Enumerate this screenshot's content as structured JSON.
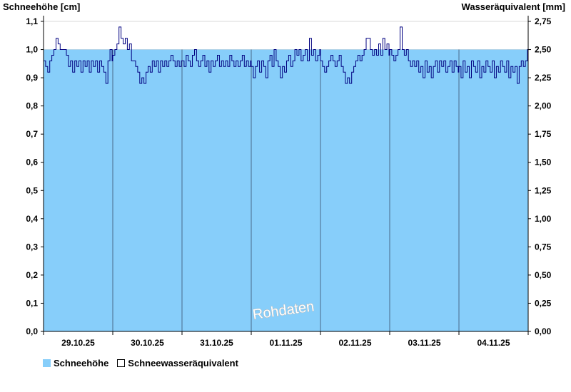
{
  "chart_data": {
    "type": "area",
    "y_left_label": "Schneehöhe [cm]",
    "y_right_label": "Wasseräquivalent [mm]",
    "y_left_range": [
      0.0,
      1.1
    ],
    "y_right_range": [
      0.0,
      2.75
    ],
    "y_left_ticks": [
      "0,0",
      "0,1",
      "0,2",
      "0,3",
      "0,4",
      "0,5",
      "0,6",
      "0,7",
      "0,8",
      "0,9",
      "1,0",
      "1,1"
    ],
    "y_right_ticks": [
      "0,00",
      "0,25",
      "0,50",
      "0,75",
      "1,00",
      "1,25",
      "1,50",
      "1,75",
      "2,00",
      "2,25",
      "2,50",
      "2,75"
    ],
    "x_categories": [
      "29.10.25",
      "30.10.25",
      "31.10.25",
      "01.11.25",
      "02.11.25",
      "03.11.25",
      "04.11.25"
    ],
    "grid_horizontal": true,
    "day_separators": true,
    "watermark": "Rohdaten",
    "series": [
      {
        "name": "Schneehöhe",
        "kind": "area",
        "color": "#87cefa",
        "value_cm": 1.0
      },
      {
        "name": "Schneewasseräquivalent",
        "kind": "line",
        "color": "#000080",
        "axis": "left_cm_scale",
        "points": [
          [
            0.0,
            0.96
          ],
          [
            0.03,
            0.94
          ],
          [
            0.06,
            0.92
          ],
          [
            0.09,
            0.96
          ],
          [
            0.12,
            0.98
          ],
          [
            0.15,
            1.0
          ],
          [
            0.18,
            1.04
          ],
          [
            0.21,
            1.02
          ],
          [
            0.24,
            1.0
          ],
          [
            0.27,
            1.0
          ],
          [
            0.3,
            1.0
          ],
          [
            0.33,
            0.98
          ],
          [
            0.36,
            0.94
          ],
          [
            0.39,
            0.96
          ],
          [
            0.42,
            0.92
          ],
          [
            0.45,
            0.96
          ],
          [
            0.48,
            0.94
          ],
          [
            0.51,
            0.96
          ],
          [
            0.54,
            0.92
          ],
          [
            0.57,
            0.96
          ],
          [
            0.6,
            0.94
          ],
          [
            0.63,
            0.96
          ],
          [
            0.66,
            0.92
          ],
          [
            0.69,
            0.96
          ],
          [
            0.72,
            0.94
          ],
          [
            0.75,
            0.96
          ],
          [
            0.78,
            0.92
          ],
          [
            0.81,
            0.96
          ],
          [
            0.84,
            0.94
          ],
          [
            0.87,
            0.92
          ],
          [
            0.9,
            0.88
          ],
          [
            0.93,
            0.96
          ],
          [
            0.96,
            1.0
          ],
          [
            0.99,
            0.96
          ],
          [
            1.0,
            0.98
          ],
          [
            1.03,
            1.0
          ],
          [
            1.06,
            1.02
          ],
          [
            1.09,
            1.08
          ],
          [
            1.12,
            1.04
          ],
          [
            1.15,
            1.02
          ],
          [
            1.18,
            1.04
          ],
          [
            1.21,
            1.0
          ],
          [
            1.24,
            1.02
          ],
          [
            1.27,
            0.96
          ],
          [
            1.3,
            0.96
          ],
          [
            1.33,
            0.94
          ],
          [
            1.36,
            0.92
          ],
          [
            1.39,
            0.88
          ],
          [
            1.42,
            0.9
          ],
          [
            1.45,
            0.88
          ],
          [
            1.48,
            0.92
          ],
          [
            1.51,
            0.94
          ],
          [
            1.54,
            0.92
          ],
          [
            1.57,
            0.96
          ],
          [
            1.6,
            0.94
          ],
          [
            1.63,
            0.96
          ],
          [
            1.66,
            0.92
          ],
          [
            1.69,
            0.96
          ],
          [
            1.72,
            0.94
          ],
          [
            1.75,
            0.96
          ],
          [
            1.78,
            0.94
          ],
          [
            1.81,
            0.96
          ],
          [
            1.84,
            0.98
          ],
          [
            1.87,
            0.96
          ],
          [
            1.9,
            0.94
          ],
          [
            1.93,
            0.96
          ],
          [
            1.96,
            0.94
          ],
          [
            1.99,
            0.96
          ],
          [
            2.0,
            0.96
          ],
          [
            2.03,
            0.94
          ],
          [
            2.06,
            0.98
          ],
          [
            2.09,
            0.96
          ],
          [
            2.12,
            0.94
          ],
          [
            2.15,
            0.98
          ],
          [
            2.18,
            1.0
          ],
          [
            2.21,
            0.96
          ],
          [
            2.24,
            0.94
          ],
          [
            2.27,
            0.96
          ],
          [
            2.3,
            0.98
          ],
          [
            2.33,
            0.94
          ],
          [
            2.36,
            0.96
          ],
          [
            2.39,
            0.92
          ],
          [
            2.42,
            0.96
          ],
          [
            2.45,
            0.94
          ],
          [
            2.48,
            0.96
          ],
          [
            2.51,
            0.98
          ],
          [
            2.54,
            0.94
          ],
          [
            2.57,
            0.96
          ],
          [
            2.6,
            0.94
          ],
          [
            2.63,
            0.96
          ],
          [
            2.66,
            0.94
          ],
          [
            2.69,
            0.98
          ],
          [
            2.72,
            0.96
          ],
          [
            2.75,
            0.94
          ],
          [
            2.78,
            0.96
          ],
          [
            2.81,
            0.94
          ],
          [
            2.84,
            0.96
          ],
          [
            2.87,
            0.98
          ],
          [
            2.9,
            0.94
          ],
          [
            2.93,
            0.96
          ],
          [
            2.96,
            0.94
          ],
          [
            2.99,
            0.96
          ],
          [
            3.0,
            0.94
          ],
          [
            3.03,
            0.9
          ],
          [
            3.06,
            0.94
          ],
          [
            3.09,
            0.96
          ],
          [
            3.12,
            0.92
          ],
          [
            3.15,
            0.96
          ],
          [
            3.18,
            0.94
          ],
          [
            3.21,
            0.9
          ],
          [
            3.24,
            0.96
          ],
          [
            3.27,
            0.98
          ],
          [
            3.3,
            0.94
          ],
          [
            3.33,
            1.0
          ],
          [
            3.36,
            0.96
          ],
          [
            3.39,
            0.94
          ],
          [
            3.42,
            0.9
          ],
          [
            3.45,
            0.94
          ],
          [
            3.48,
            0.92
          ],
          [
            3.51,
            0.96
          ],
          [
            3.54,
            0.98
          ],
          [
            3.57,
            0.94
          ],
          [
            3.6,
            0.96
          ],
          [
            3.63,
            1.0
          ],
          [
            3.66,
            0.98
          ],
          [
            3.69,
            1.0
          ],
          [
            3.72,
            0.96
          ],
          [
            3.75,
            0.98
          ],
          [
            3.78,
            1.0
          ],
          [
            3.81,
            0.96
          ],
          [
            3.84,
            1.04
          ],
          [
            3.87,
            0.98
          ],
          [
            3.9,
            1.0
          ],
          [
            3.93,
            0.96
          ],
          [
            3.96,
            0.98
          ],
          [
            3.99,
            1.0
          ],
          [
            4.0,
            0.96
          ],
          [
            4.03,
            0.94
          ],
          [
            4.06,
            0.92
          ],
          [
            4.09,
            0.94
          ],
          [
            4.12,
            0.96
          ],
          [
            4.15,
            0.98
          ],
          [
            4.18,
            0.96
          ],
          [
            4.21,
            0.94
          ],
          [
            4.24,
            0.96
          ],
          [
            4.27,
            0.98
          ],
          [
            4.3,
            0.94
          ],
          [
            4.33,
            0.92
          ],
          [
            4.36,
            0.88
          ],
          [
            4.39,
            0.9
          ],
          [
            4.42,
            0.88
          ],
          [
            4.45,
            0.92
          ],
          [
            4.48,
            0.94
          ],
          [
            4.51,
            0.96
          ],
          [
            4.54,
            0.98
          ],
          [
            4.57,
            0.96
          ],
          [
            4.6,
            0.98
          ],
          [
            4.63,
            1.0
          ],
          [
            4.66,
            1.04
          ],
          [
            4.69,
            1.04
          ],
          [
            4.72,
            1.0
          ],
          [
            4.75,
            0.98
          ],
          [
            4.78,
            1.0
          ],
          [
            4.81,
            0.98
          ],
          [
            4.84,
            1.02
          ],
          [
            4.87,
            0.98
          ],
          [
            4.9,
            1.04
          ],
          [
            4.93,
            1.0
          ],
          [
            4.96,
            1.02
          ],
          [
            4.99,
            0.98
          ],
          [
            5.0,
            1.0
          ],
          [
            5.03,
            0.98
          ],
          [
            5.06,
            0.96
          ],
          [
            5.09,
            0.98
          ],
          [
            5.12,
            1.0
          ],
          [
            5.15,
            1.08
          ],
          [
            5.18,
            1.0
          ],
          [
            5.21,
            0.98
          ],
          [
            5.24,
            1.0
          ],
          [
            5.27,
            0.96
          ],
          [
            5.3,
            0.94
          ],
          [
            5.33,
            0.96
          ],
          [
            5.36,
            0.94
          ],
          [
            5.39,
            0.96
          ],
          [
            5.42,
            0.92
          ],
          [
            5.45,
            0.94
          ],
          [
            5.48,
            0.9
          ],
          [
            5.51,
            0.96
          ],
          [
            5.54,
            0.92
          ],
          [
            5.57,
            0.94
          ],
          [
            5.6,
            0.9
          ],
          [
            5.63,
            0.94
          ],
          [
            5.66,
            0.96
          ],
          [
            5.69,
            0.92
          ],
          [
            5.72,
            0.96
          ],
          [
            5.75,
            0.94
          ],
          [
            5.78,
            0.96
          ],
          [
            5.81,
            0.92
          ],
          [
            5.84,
            0.94
          ],
          [
            5.87,
            0.96
          ],
          [
            5.9,
            0.92
          ],
          [
            5.93,
            0.96
          ],
          [
            5.96,
            0.94
          ],
          [
            5.99,
            0.92
          ],
          [
            6.0,
            0.94
          ],
          [
            6.03,
            0.9
          ],
          [
            6.06,
            0.96
          ],
          [
            6.09,
            0.92
          ],
          [
            6.12,
            0.94
          ],
          [
            6.15,
            0.9
          ],
          [
            6.18,
            0.96
          ],
          [
            6.21,
            0.94
          ],
          [
            6.24,
            0.92
          ],
          [
            6.27,
            0.96
          ],
          [
            6.3,
            0.9
          ],
          [
            6.33,
            0.94
          ],
          [
            6.36,
            0.92
          ],
          [
            6.39,
            0.96
          ],
          [
            6.42,
            0.94
          ],
          [
            6.45,
            0.92
          ],
          [
            6.48,
            0.96
          ],
          [
            6.51,
            0.9
          ],
          [
            6.54,
            0.94
          ],
          [
            6.57,
            0.92
          ],
          [
            6.6,
            0.96
          ],
          [
            6.63,
            0.94
          ],
          [
            6.66,
            0.92
          ],
          [
            6.69,
            0.96
          ],
          [
            6.72,
            0.9
          ],
          [
            6.75,
            0.94
          ],
          [
            6.78,
            0.92
          ],
          [
            6.81,
            0.94
          ],
          [
            6.84,
            0.88
          ],
          [
            6.87,
            0.94
          ],
          [
            6.9,
            0.96
          ],
          [
            6.93,
            0.94
          ],
          [
            6.96,
            0.96
          ],
          [
            6.99,
            1.0
          ]
        ]
      }
    ]
  },
  "legend": {
    "item1": "Schneehöhe",
    "item2": "Schneewasseräquivalent"
  },
  "colors": {
    "area": "#87cefa",
    "line": "#000080",
    "grid": "#d8d8d8",
    "separator": "#4a6a8a"
  }
}
